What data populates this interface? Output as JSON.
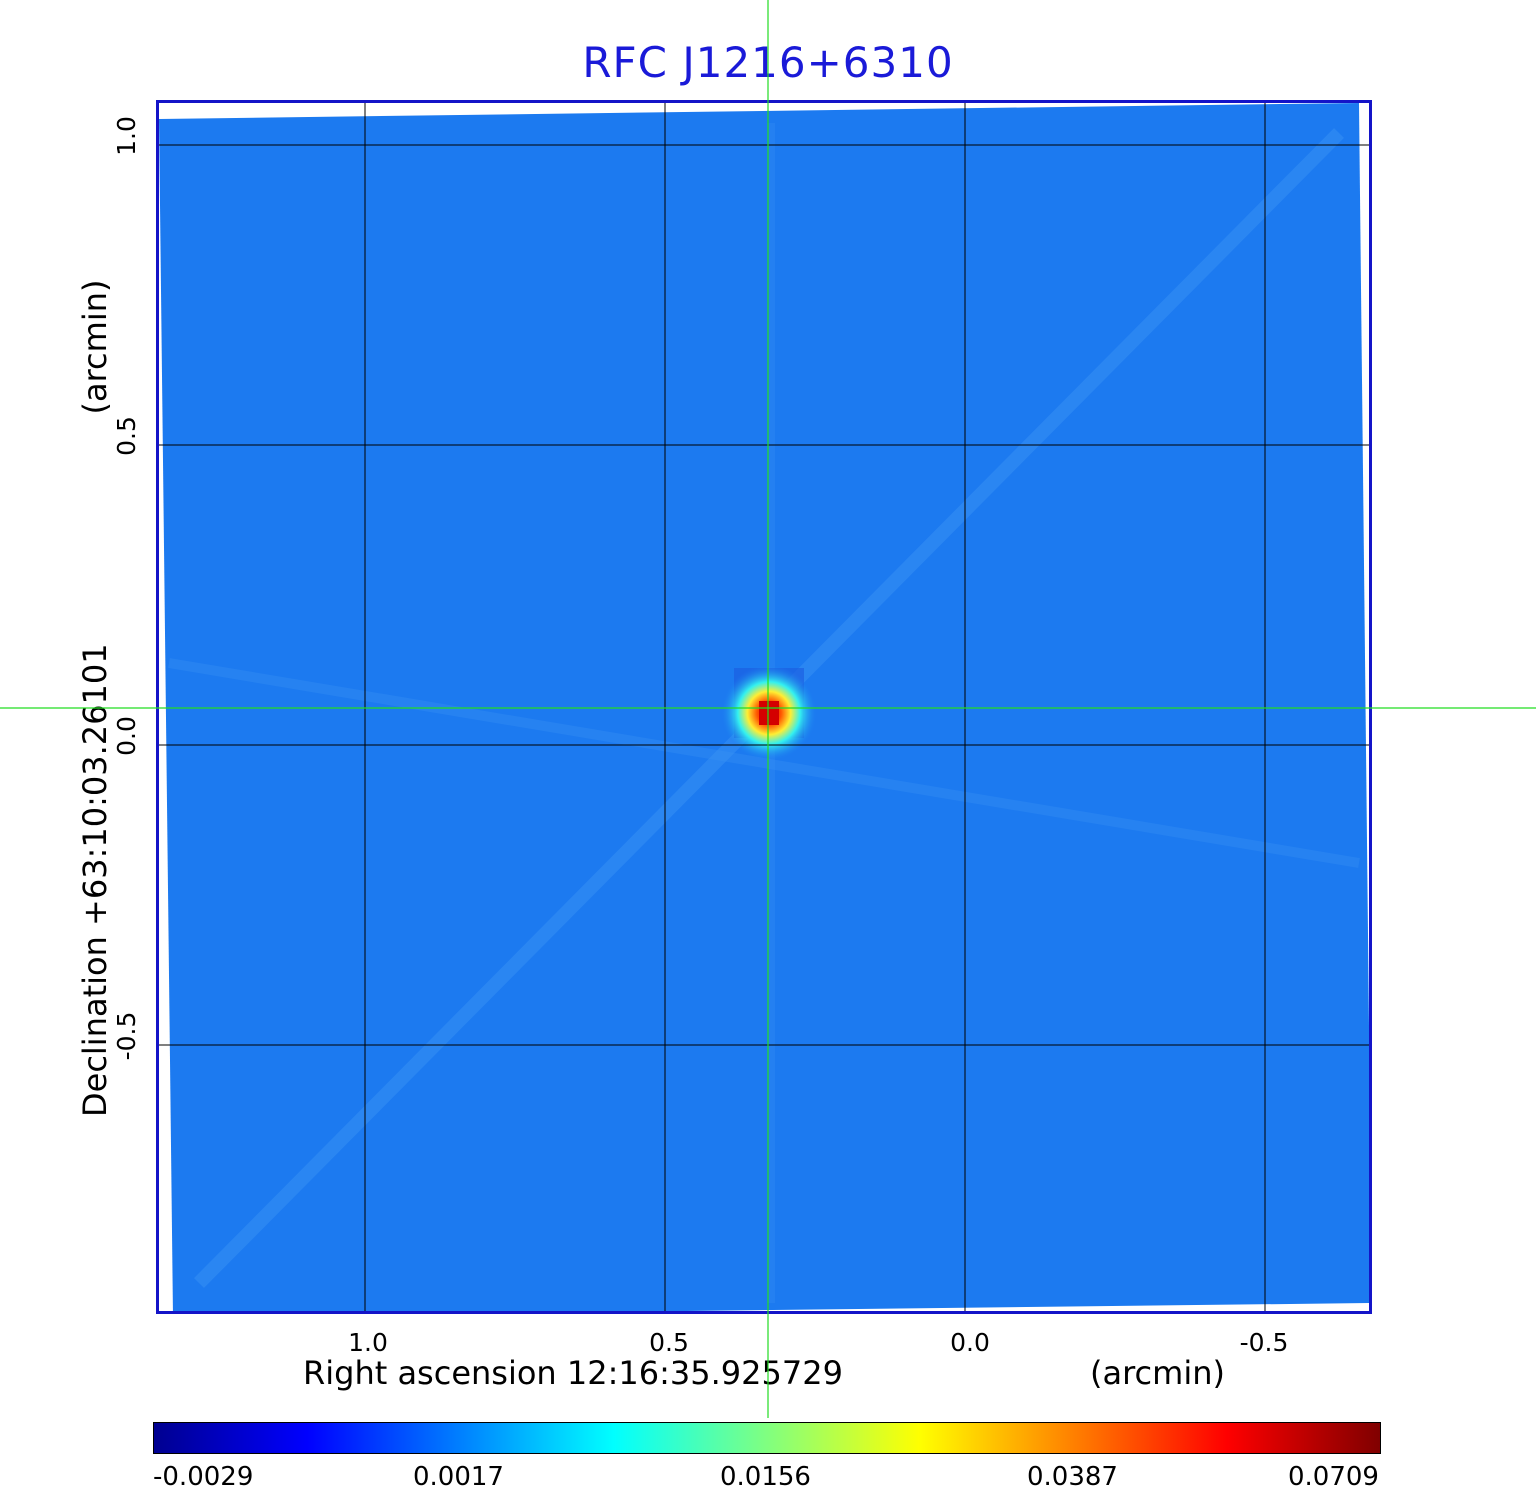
{
  "title": "RFC J1216+6310",
  "axes": {
    "x_label_left": "Right ascension  12:16:35.925729",
    "x_label_right": "(arcmin)",
    "y_label_left": "Declination  +63:10:03.26101",
    "y_label_right": "(arcmin)",
    "x_ticks": [
      "1.0",
      "0.5",
      "0.0",
      "-0.5"
    ],
    "y_ticks": [
      "1.0",
      "0.5",
      "0.0",
      "-0.5"
    ]
  },
  "colorbar": {
    "ticks": [
      "-0.0029",
      "0.0017",
      "0.0156",
      "0.0387",
      "0.0709"
    ],
    "colors": [
      "#000090",
      "#0000ff",
      "#0080ff",
      "#00ffff",
      "#80ff80",
      "#ffff00",
      "#ff8000",
      "#ff0000",
      "#800000"
    ]
  },
  "colors": {
    "title": "#1a1ad8",
    "frame": "#1414c8",
    "background_field": "#1c7af0",
    "crosshair": "#22dd22",
    "grid": "#000000"
  }
}
